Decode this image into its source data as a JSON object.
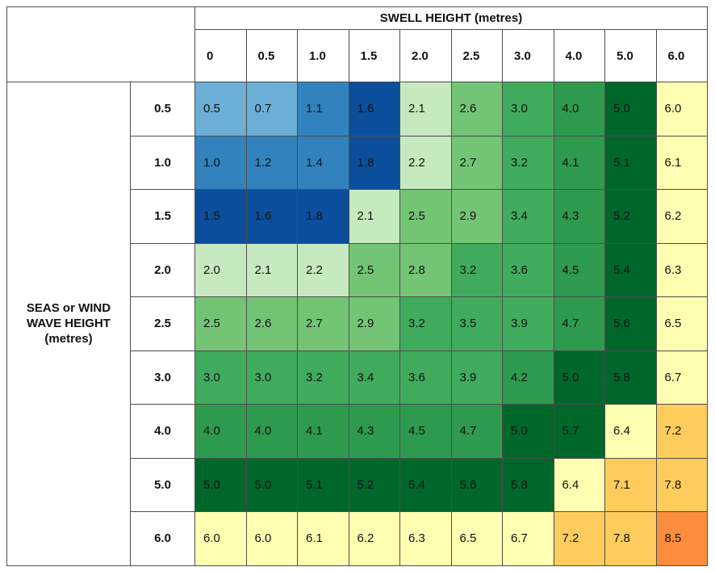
{
  "chart_data": {
    "type": "heatmap",
    "title": "SWELL HEIGHT (metres)",
    "ylabel_lines": [
      "SEAS or WIND",
      "WAVE HEIGHT",
      "(metres)"
    ],
    "columns": [
      "0",
      "0.5",
      "1.0",
      "1.5",
      "2.0",
      "2.5",
      "3.0",
      "4.0",
      "5.0",
      "6.0"
    ],
    "rows": [
      "0.5",
      "1.0",
      "1.5",
      "2.0",
      "2.5",
      "3.0",
      "4.0",
      "5.0",
      "6.0"
    ],
    "values": [
      [
        "0.5",
        "0.7",
        "1.1",
        "1.6",
        "2.1",
        "2.6",
        "3.0",
        "4.0",
        "5.0",
        "6.0"
      ],
      [
        "1.0",
        "1.2",
        "1.4",
        "1.8",
        "2.2",
        "2.7",
        "3.2",
        "4.1",
        "5.1",
        "6.1"
      ],
      [
        "1.5",
        "1.6",
        "1.8",
        "2.1",
        "2.5",
        "2.9",
        "3.4",
        "4.3",
        "5.2",
        "6.2"
      ],
      [
        "2.0",
        "2.1",
        "2.2",
        "2.5",
        "2.8",
        "3.2",
        "3.6",
        "4.5",
        "5.4",
        "6.3"
      ],
      [
        "2.5",
        "2.6",
        "2.7",
        "2.9",
        "3.2",
        "3.5",
        "3.9",
        "4.7",
        "5.6",
        "6.5"
      ],
      [
        "3.0",
        "3.0",
        "3.2",
        "3.4",
        "3.6",
        "3.9",
        "4.2",
        "5.0",
        "5.8",
        "6.7"
      ],
      [
        "4.0",
        "4.0",
        "4.1",
        "4.3",
        "4.5",
        "4.7",
        "5.0",
        "5.7",
        "6.4",
        "7.2"
      ],
      [
        "5.0",
        "5.0",
        "5.1",
        "5.2",
        "5.4",
        "5.6",
        "5.8",
        "6.4",
        "7.1",
        "7.8"
      ],
      [
        "6.0",
        "6.0",
        "6.1",
        "6.2",
        "6.3",
        "6.5",
        "6.7",
        "7.2",
        "7.8",
        "8.5"
      ]
    ],
    "color_classes": [
      [
        0,
        0,
        1,
        2,
        3,
        4,
        5,
        6,
        7,
        8
      ],
      [
        1,
        1,
        1,
        2,
        3,
        4,
        5,
        6,
        7,
        8
      ],
      [
        2,
        2,
        2,
        3,
        4,
        4,
        5,
        6,
        7,
        8
      ],
      [
        3,
        3,
        3,
        4,
        4,
        5,
        5,
        6,
        7,
        8
      ],
      [
        4,
        4,
        4,
        4,
        5,
        5,
        5,
        6,
        7,
        8
      ],
      [
        5,
        5,
        5,
        5,
        5,
        5,
        6,
        7,
        7,
        8
      ],
      [
        6,
        6,
        6,
        6,
        6,
        6,
        7,
        7,
        8,
        9
      ],
      [
        7,
        7,
        7,
        7,
        7,
        7,
        7,
        8,
        9,
        9
      ],
      [
        8,
        8,
        8,
        8,
        8,
        8,
        8,
        9,
        9,
        10
      ]
    ],
    "palette": [
      "#6baed6",
      "#3182bd",
      "#08519c",
      "#c7e9c0",
      "#74c476",
      "#41ab5d",
      "#238b45",
      "#006d2c",
      "#ffffb2",
      "#fecc5c",
      "#fd8d3c",
      "#f03b20"
    ],
    "palette_fix": {
      "0": "#6baed6",
      "1": "#3182bd",
      "2": "#08519c",
      "3": "#c7e9c0",
      "4": "#74c476",
      "5": "#41ab5d",
      "6": "#238b45",
      "7": "#006d2c",
      "8": "#ffffb2",
      "9": "#fecc5c",
      "10": "#fd8d3c",
      "11": "#f03b20"
    }
  }
}
